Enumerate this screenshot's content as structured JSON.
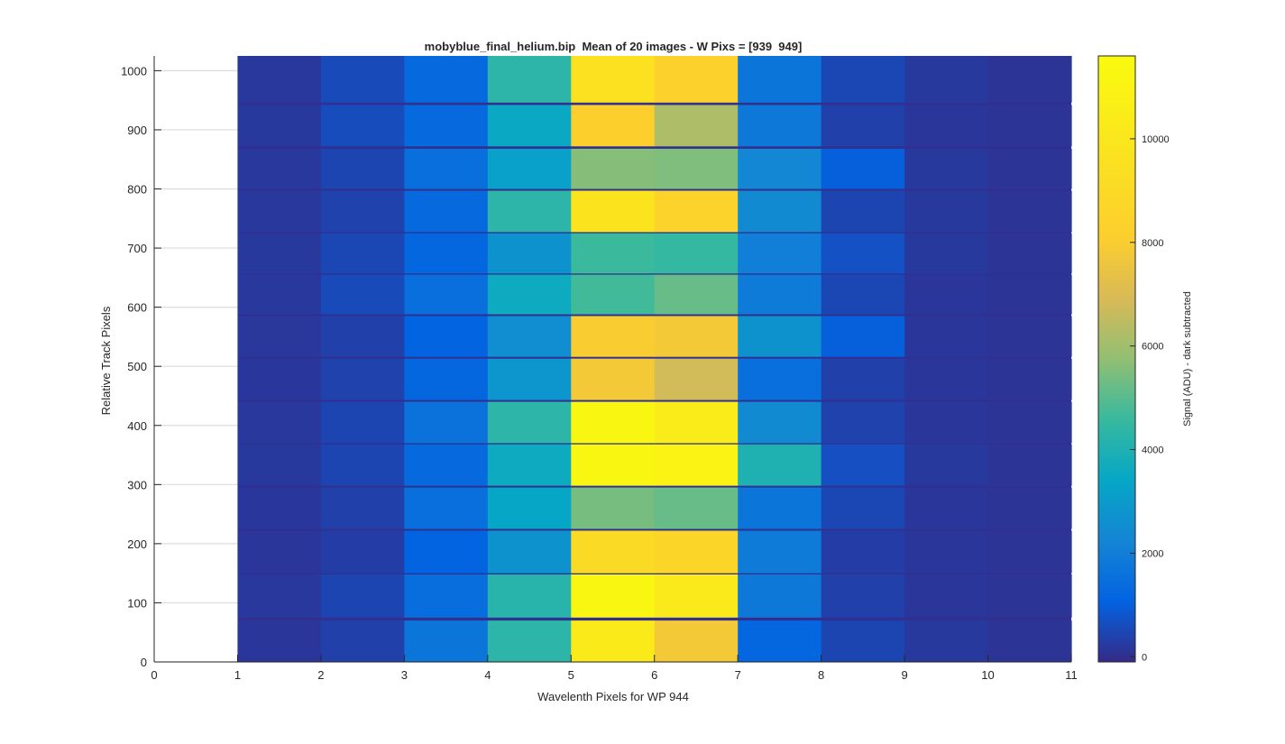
{
  "chart_data": {
    "type": "heatmap",
    "title": "mobyblue_final_helium.bip  Mean of 20 images - W Pixs = [939  949]",
    "xlabel": "Wavelenth Pixels for WP 944",
    "ylabel": "Relative Track Pixels",
    "colorbar_label": "Signal (ADU) - dark subtracted",
    "xlim": [
      0,
      11
    ],
    "ylim": [
      0,
      1025
    ],
    "x_ticks": [
      0,
      1,
      2,
      3,
      4,
      5,
      6,
      7,
      8,
      9,
      10,
      11
    ],
    "y_ticks": [
      0,
      100,
      200,
      300,
      400,
      500,
      600,
      700,
      800,
      900,
      1000
    ],
    "colorbar_ticks": [
      0,
      2000,
      4000,
      6000,
      8000,
      10000
    ],
    "clim": [
      -100,
      11600
    ],
    "grid": "y",
    "colormap": "parula",
    "columns_x": [
      1,
      2,
      3,
      4,
      5,
      6,
      7,
      8,
      9,
      10
    ],
    "tracks": [
      {
        "y0": 0,
        "y1": 70,
        "values": [
          150,
          350,
          1700,
          4300,
          10300,
          7800,
          1200,
          450,
          200,
          100
        ]
      },
      {
        "y0": 75,
        "y1": 148,
        "values": [
          180,
          450,
          1400,
          4200,
          11300,
          10200,
          1800,
          350,
          150,
          100
        ]
      },
      {
        "y0": 150,
        "y1": 222,
        "values": [
          150,
          300,
          1100,
          2700,
          9000,
          8600,
          1900,
          300,
          150,
          100
        ]
      },
      {
        "y0": 225,
        "y1": 295,
        "values": [
          170,
          350,
          1500,
          3400,
          5400,
          5200,
          1700,
          500,
          150,
          100
        ]
      },
      {
        "y0": 298,
        "y1": 368,
        "values": [
          200,
          450,
          1300,
          3600,
          11200,
          11000,
          4000,
          650,
          200,
          100
        ]
      },
      {
        "y0": 370,
        "y1": 440,
        "values": [
          180,
          450,
          1600,
          4300,
          11300,
          10400,
          2400,
          400,
          150,
          100
        ]
      },
      {
        "y0": 443,
        "y1": 513,
        "values": [
          170,
          400,
          1200,
          2800,
          7800,
          6800,
          1500,
          350,
          150,
          100
        ]
      },
      {
        "y0": 516,
        "y1": 585,
        "values": [
          160,
          350,
          1100,
          2500,
          8000,
          7800,
          2700,
          1000,
          150,
          100
        ]
      },
      {
        "y0": 588,
        "y1": 655,
        "values": [
          180,
          550,
          1500,
          3600,
          4700,
          5200,
          1900,
          500,
          150,
          100
        ]
      },
      {
        "y0": 657,
        "y1": 725,
        "values": [
          200,
          500,
          1200,
          2700,
          4600,
          4500,
          2000,
          700,
          200,
          100
        ]
      },
      {
        "y0": 727,
        "y1": 797,
        "values": [
          180,
          400,
          1300,
          4300,
          9800,
          8500,
          2400,
          450,
          200,
          100
        ]
      },
      {
        "y0": 800,
        "y1": 868,
        "values": [
          190,
          450,
          1500,
          3200,
          5600,
          5500,
          2300,
          1000,
          200,
          100
        ]
      },
      {
        "y0": 872,
        "y1": 942,
        "values": [
          200,
          600,
          1300,
          3500,
          8200,
          6200,
          1800,
          350,
          150,
          100
        ]
      },
      {
        "y0": 946,
        "y1": 1025,
        "values": [
          180,
          550,
          1300,
          4300,
          9600,
          8300,
          1700,
          500,
          200,
          100
        ]
      }
    ]
  }
}
